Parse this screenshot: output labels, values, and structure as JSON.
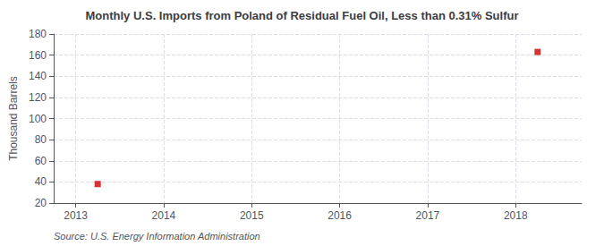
{
  "chart_data": {
    "type": "scatter",
    "title": "Monthly U.S. Imports from Poland of Residual Fuel Oil, Less than 0.31% Sulfur",
    "ylabel": "Thousand Barrels",
    "annotations": [
      "Source: U.S. Energy Information Administration"
    ],
    "x": [
      2013.25,
      2018.25
    ],
    "values": [
      38,
      163
    ],
    "color": "#cc0000",
    "marker": "square",
    "xlim": [
      2012.75,
      2018.75
    ],
    "xticks": [
      2013,
      2014,
      2015,
      2016,
      2017,
      2018
    ],
    "ylim": [
      20,
      180
    ],
    "yticks": [
      20,
      40,
      60,
      80,
      100,
      120,
      140,
      160,
      180
    ],
    "grid": true
  }
}
